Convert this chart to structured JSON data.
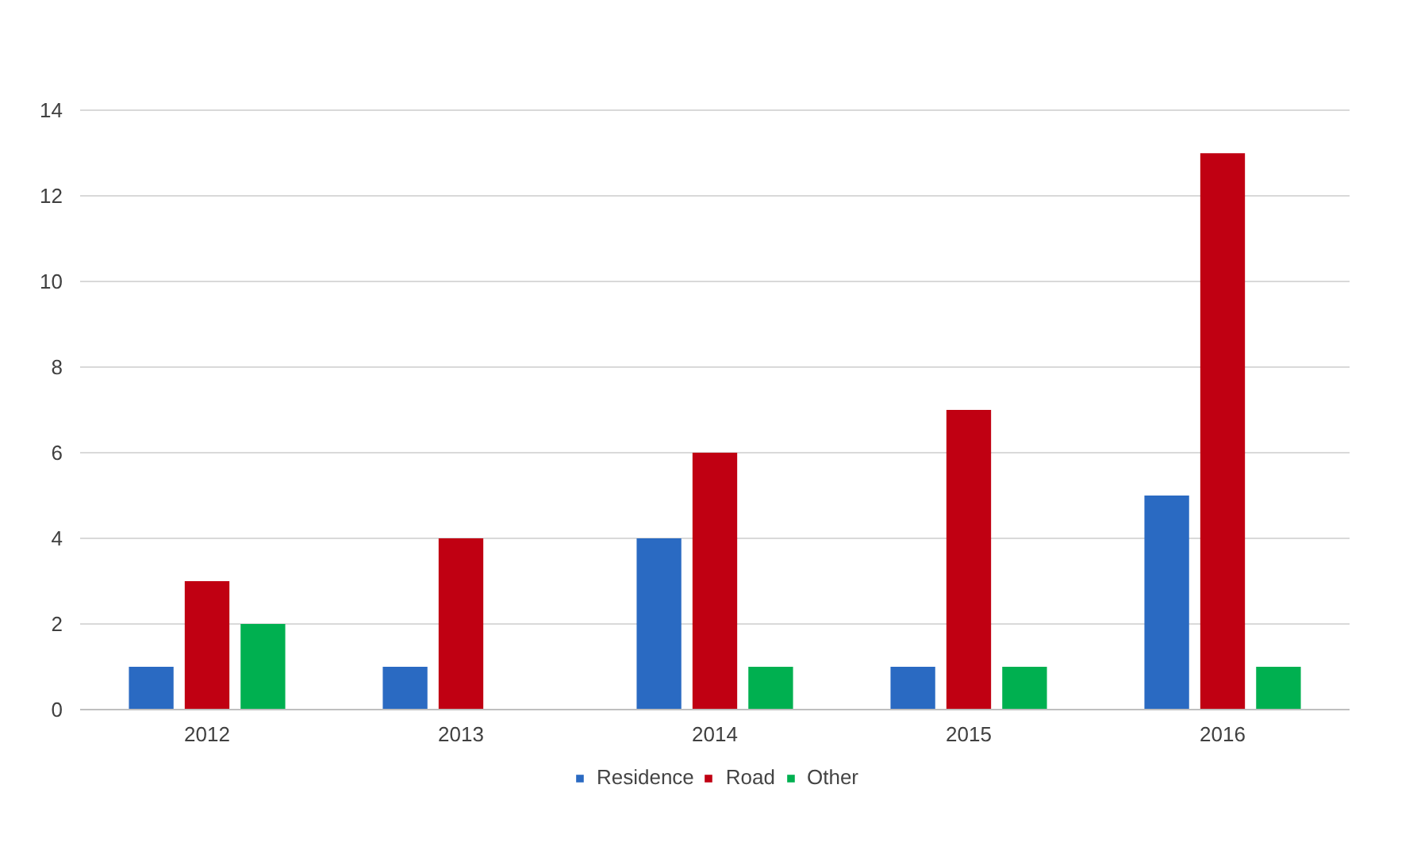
{
  "chart_data": {
    "type": "bar",
    "categories": [
      "2012",
      "2013",
      "2014",
      "2015",
      "2016"
    ],
    "series": [
      {
        "name": "Residence",
        "color": "#2a6ac2",
        "values": [
          1,
          1,
          4,
          1,
          5
        ]
      },
      {
        "name": "Road",
        "color": "#c00012",
        "values": [
          3,
          4,
          6,
          7,
          13
        ]
      },
      {
        "name": "Other",
        "color": "#00b050",
        "values": [
          2,
          0,
          1,
          1,
          1
        ]
      }
    ],
    "ylim": [
      0,
      14
    ],
    "yticks": [
      0,
      2,
      4,
      6,
      8,
      10,
      12,
      14
    ],
    "grid": "y",
    "legend": "bottom"
  }
}
